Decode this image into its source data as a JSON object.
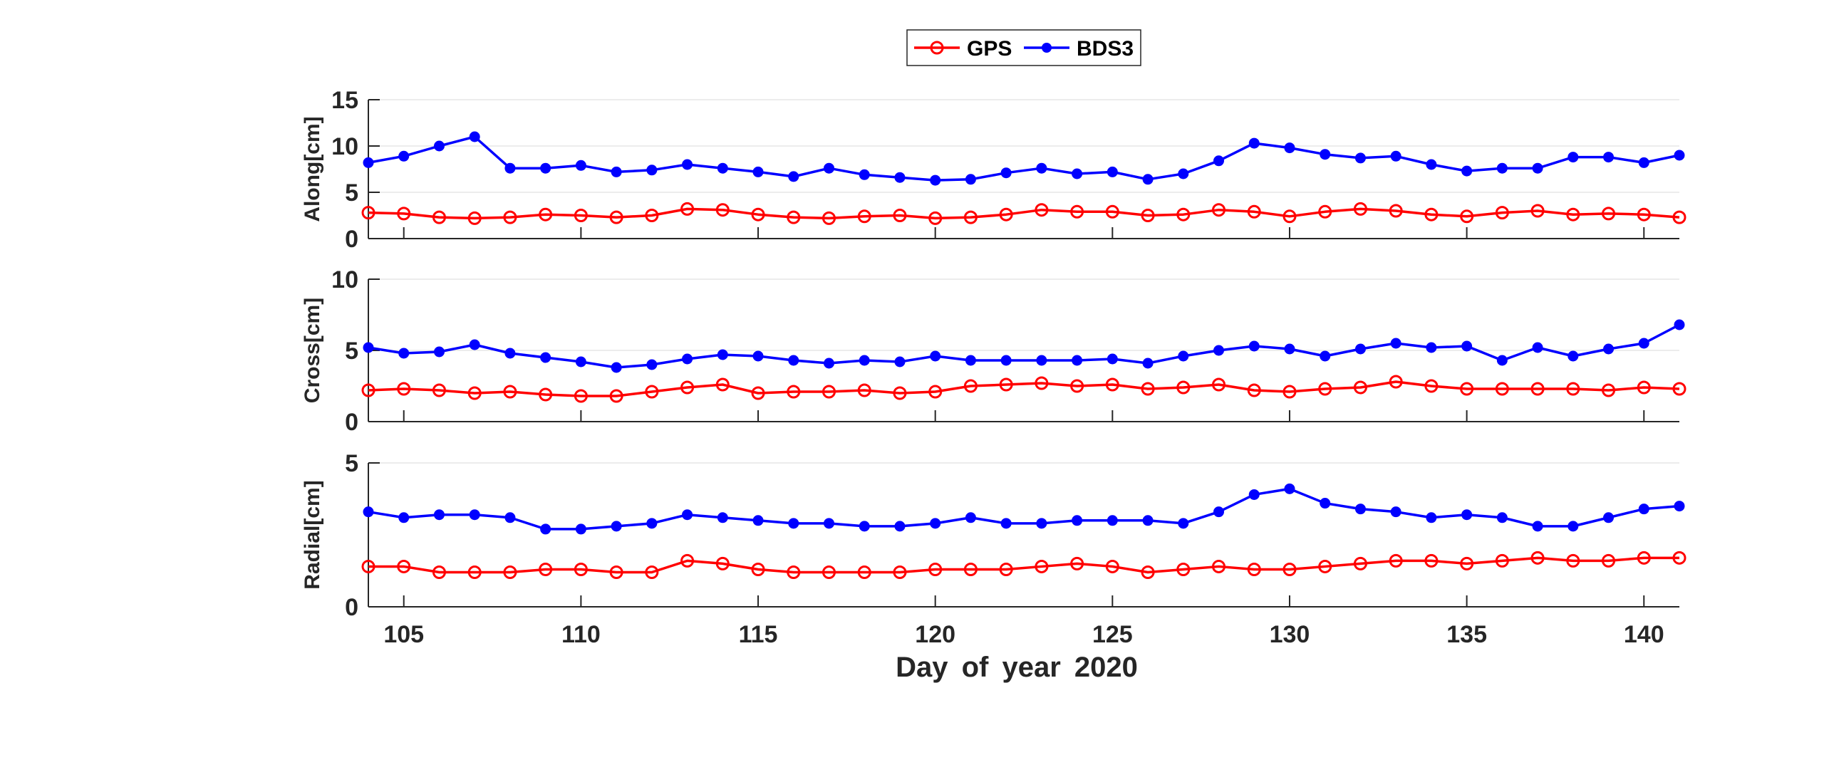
{
  "chart_data": {
    "type": "line",
    "xlabel": "Day of year 2020",
    "x": [
      104,
      105,
      106,
      107,
      108,
      109,
      110,
      111,
      112,
      113,
      114,
      115,
      116,
      117,
      118,
      119,
      120,
      121,
      122,
      123,
      124,
      125,
      126,
      127,
      128,
      129,
      130,
      131,
      132,
      133,
      134,
      135,
      136,
      137,
      138,
      139,
      140,
      141
    ],
    "xlim": [
      104,
      141
    ],
    "xticks": [
      105,
      110,
      115,
      120,
      125,
      130,
      135,
      140
    ],
    "grid": true,
    "legend": {
      "placement": "top-center",
      "entries": [
        "GPS",
        "BDS3"
      ]
    },
    "colors": {
      "GPS": "#ff0000",
      "BDS3": "#0000ff"
    },
    "subplots": [
      {
        "ylabel": "Along[cm]",
        "ylim": [
          0,
          15
        ],
        "yticks": [
          0,
          5,
          10,
          15
        ],
        "series": [
          {
            "name": "GPS",
            "marker": "open-circle",
            "values": [
              2.8,
              2.7,
              2.3,
              2.2,
              2.3,
              2.6,
              2.5,
              2.3,
              2.5,
              3.2,
              3.1,
              2.6,
              2.3,
              2.2,
              2.4,
              2.5,
              2.2,
              2.3,
              2.6,
              3.1,
              2.9,
              2.9,
              2.5,
              2.6,
              3.1,
              2.9,
              2.4,
              2.9,
              3.2,
              3.0,
              2.6,
              2.4,
              2.8,
              3.0,
              2.6,
              2.7,
              2.6,
              2.3
            ]
          },
          {
            "name": "BDS3",
            "marker": "filled-dot",
            "values": [
              8.2,
              8.9,
              10.0,
              11.0,
              7.6,
              7.6,
              7.9,
              7.2,
              7.4,
              8.0,
              7.6,
              7.2,
              6.7,
              7.6,
              6.9,
              6.6,
              6.3,
              6.4,
              7.1,
              7.6,
              7.0,
              7.2,
              6.4,
              7.0,
              8.4,
              10.3,
              9.8,
              9.1,
              8.7,
              8.9,
              8.0,
              7.3,
              7.6,
              7.6,
              8.8,
              8.8,
              8.2,
              9.0
            ]
          }
        ]
      },
      {
        "ylabel": "Cross[cm]",
        "ylim": [
          0,
          10
        ],
        "yticks": [
          0,
          5,
          10
        ],
        "series": [
          {
            "name": "GPS",
            "marker": "open-circle",
            "values": [
              2.2,
              2.3,
              2.2,
              2.0,
              2.1,
              1.9,
              1.8,
              1.8,
              2.1,
              2.4,
              2.6,
              2.0,
              2.1,
              2.1,
              2.2,
              2.0,
              2.1,
              2.5,
              2.6,
              2.7,
              2.5,
              2.6,
              2.3,
              2.4,
              2.6,
              2.2,
              2.1,
              2.3,
              2.4,
              2.8,
              2.5,
              2.3,
              2.3,
              2.3,
              2.3,
              2.2,
              2.4,
              2.3
            ]
          },
          {
            "name": "BDS3",
            "marker": "filled-dot",
            "values": [
              5.2,
              4.8,
              4.9,
              5.4,
              4.8,
              4.5,
              4.2,
              3.8,
              4.0,
              4.4,
              4.7,
              4.6,
              4.3,
              4.1,
              4.3,
              4.2,
              4.6,
              4.3,
              4.3,
              4.3,
              4.3,
              4.4,
              4.1,
              4.6,
              5.0,
              5.3,
              5.1,
              4.6,
              5.1,
              5.5,
              5.2,
              5.3,
              4.3,
              5.2,
              4.6,
              5.1,
              5.5,
              6.8
            ]
          }
        ]
      },
      {
        "ylabel": "Radial[cm]",
        "ylim": [
          0,
          5
        ],
        "yticks": [
          0,
          5
        ],
        "series": [
          {
            "name": "GPS",
            "marker": "open-circle",
            "values": [
              1.4,
              1.4,
              1.2,
              1.2,
              1.2,
              1.3,
              1.3,
              1.2,
              1.2,
              1.6,
              1.5,
              1.3,
              1.2,
              1.2,
              1.2,
              1.2,
              1.3,
              1.3,
              1.3,
              1.4,
              1.5,
              1.4,
              1.2,
              1.3,
              1.4,
              1.3,
              1.3,
              1.4,
              1.5,
              1.6,
              1.6,
              1.5,
              1.6,
              1.7,
              1.6,
              1.6,
              1.7,
              1.7
            ]
          },
          {
            "name": "BDS3",
            "marker": "filled-dot",
            "values": [
              3.3,
              3.1,
              3.2,
              3.2,
              3.1,
              2.7,
              2.7,
              2.8,
              2.9,
              3.2,
              3.1,
              3.0,
              2.9,
              2.9,
              2.8,
              2.8,
              2.9,
              3.1,
              2.9,
              2.9,
              3.0,
              3.0,
              3.0,
              2.9,
              3.3,
              3.9,
              4.1,
              3.6,
              3.4,
              3.3,
              3.1,
              3.2,
              3.1,
              2.8,
              2.8,
              3.1,
              3.4,
              3.5
            ]
          }
        ]
      }
    ]
  }
}
